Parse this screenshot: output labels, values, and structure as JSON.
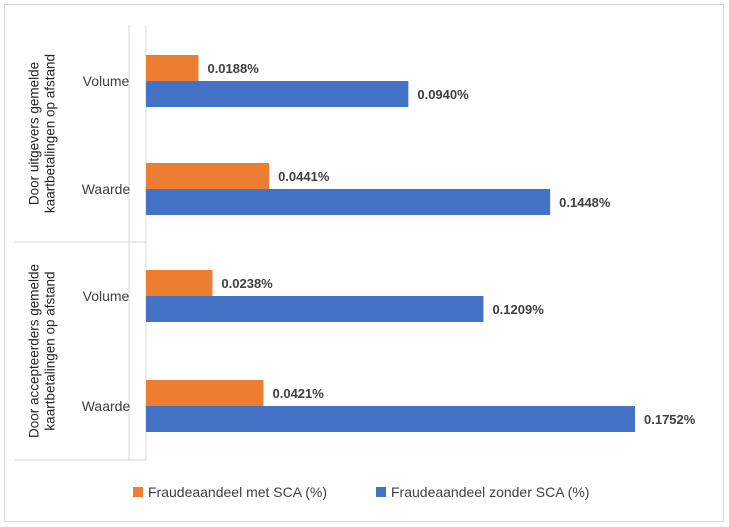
{
  "chart_data": {
    "type": "bar",
    "orientation": "horizontal",
    "groups": [
      {
        "label": "Door uitgevers gemelde kaartbetalingen op afstand",
        "categories": [
          "Volume",
          "Waarde"
        ]
      },
      {
        "label": "Door accepteerders gemelde kaartbetalingen op afstand",
        "categories": [
          "Volume",
          "Waarde"
        ]
      }
    ],
    "categories": [
      "Volume",
      "Waarde",
      "Volume",
      "Waarde"
    ],
    "series": [
      {
        "name": "Fraudeaandeel met SCA (%)",
        "color": "#ED7D31",
        "values": [
          0.0188,
          0.0441,
          0.0238,
          0.0421
        ],
        "labels": [
          "0.0188%",
          "0.0441%",
          "0.0238%",
          "0.0421%"
        ]
      },
      {
        "name": "Fraudeaandeel zonder SCA (%)",
        "color": "#4472C4",
        "values": [
          0.094,
          0.1448,
          0.1209,
          0.1752
        ],
        "labels": [
          "0.0940%",
          "0.1448%",
          "0.1209%",
          "0.1752%"
        ]
      }
    ],
    "xlim": [
      0,
      0.1752
    ],
    "grid": false,
    "legend": "bottom"
  }
}
